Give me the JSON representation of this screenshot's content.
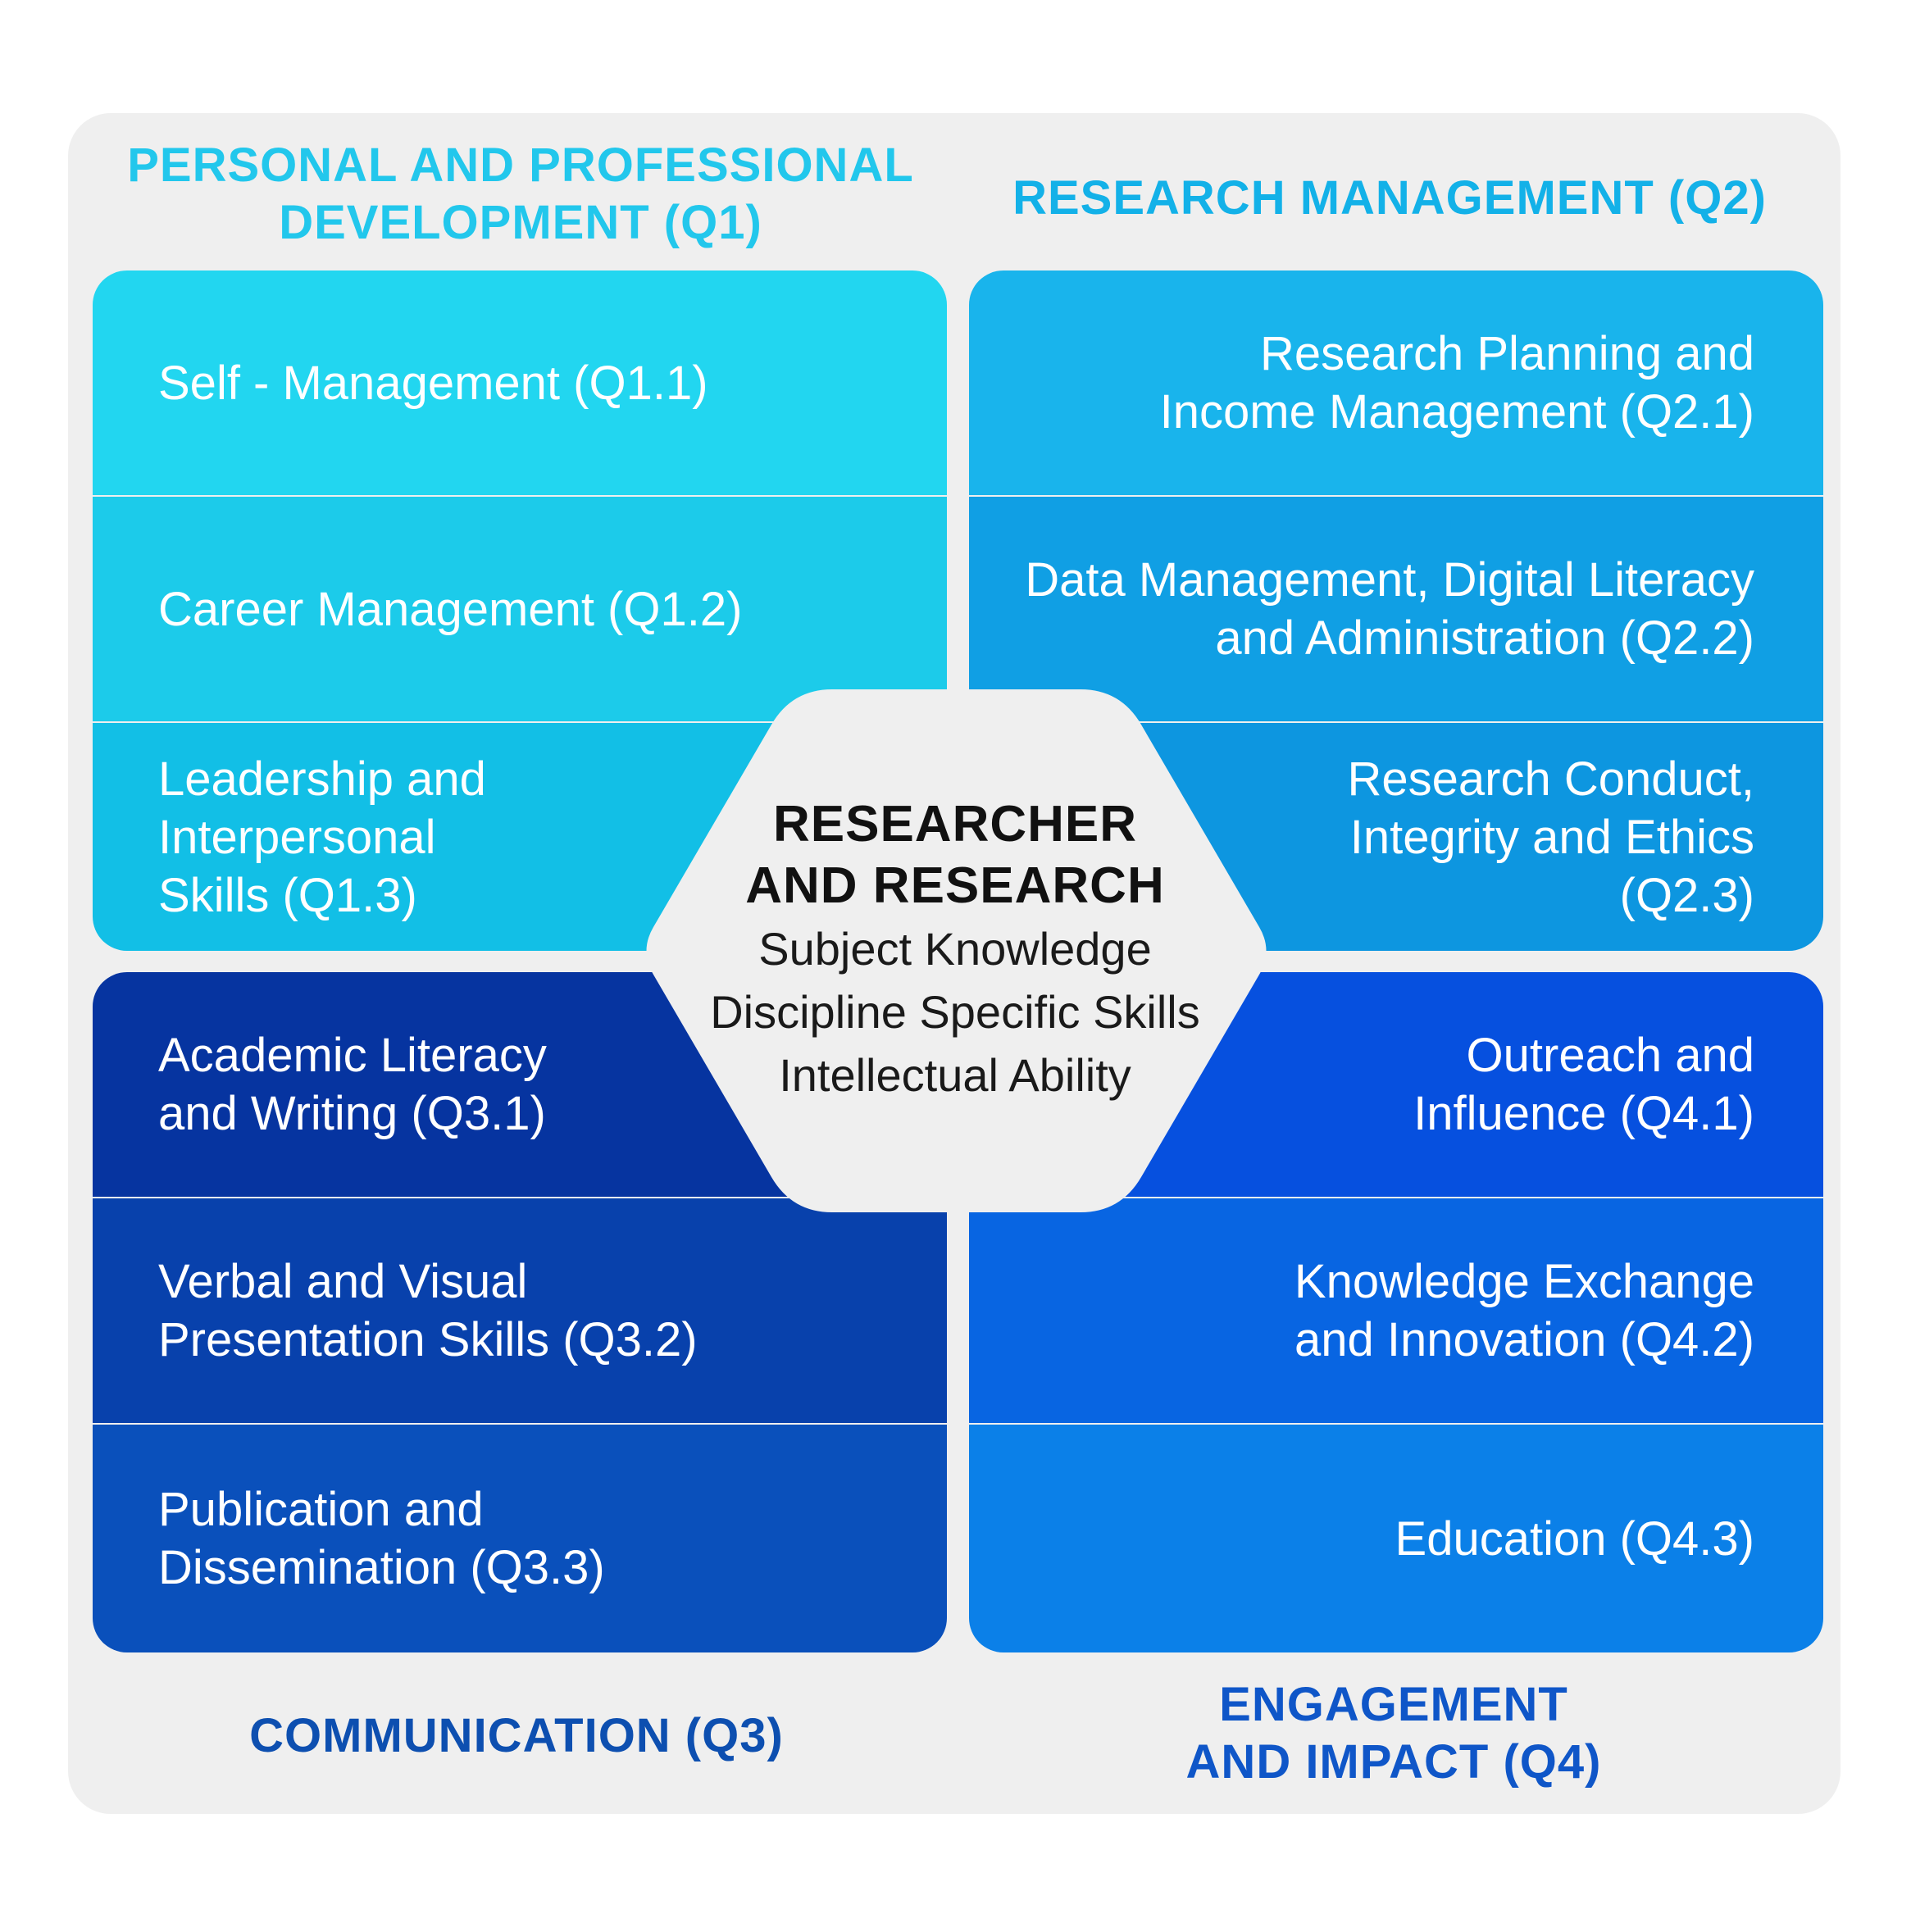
{
  "quadrants": {
    "q1": {
      "title": "PERSONAL AND PROFESSIONAL\nDEVELOPMENT (Q1)",
      "color": "#22c7ec",
      "items": [
        "Self - Management (Q1.1)",
        "Career Management (Q1.2)",
        "Leadership and\nInterpersonal\nSkills (Q1.3)"
      ],
      "cell_colors": [
        "#22d6f0",
        "#1ccbea",
        "#12bfe6"
      ]
    },
    "q2": {
      "title": "RESEARCH MANAGEMENT (Q2)",
      "color": "#13b1e8",
      "items": [
        "Research Planning and\nIncome Management (Q2.1)",
        "Data Management, Digital Literacy\nand Administration (Q2.2)",
        "Research Conduct,\nIntegrity and Ethics\n(Q2.3)"
      ],
      "cell_colors": [
        "#19b4ec",
        "#109fe4",
        "#0d96e0"
      ]
    },
    "q3": {
      "title": "COMMUNICATION (Q3)",
      "color": "#0d4fb0",
      "items": [
        "Academic Literacy\nand Writing (Q3.1)",
        "Verbal and Visual\nPresentation Skills (Q3.2)",
        "Publication and\nDissemination (Q3.3)"
      ],
      "cell_colors": [
        "#0634a0",
        "#0841ac",
        "#0a50bb"
      ]
    },
    "q4": {
      "title": "ENGAGEMENT\nAND IMPACT (Q4)",
      "color": "#0f56c8",
      "items": [
        "Outreach and\nInfluence (Q4.1)",
        "Knowledge Exchange\nand Innovation (Q4.2)",
        "Education (Q4.3)"
      ],
      "cell_colors": [
        "#0650df",
        "#0865e2",
        "#0b80e8"
      ]
    }
  },
  "center": {
    "title": "RESEARCHER\nAND RESEARCH",
    "subtitles": [
      "Subject Knowledge",
      "Discipline Specific Skills",
      "Intellectual Ability"
    ],
    "fill": "#efefef"
  }
}
